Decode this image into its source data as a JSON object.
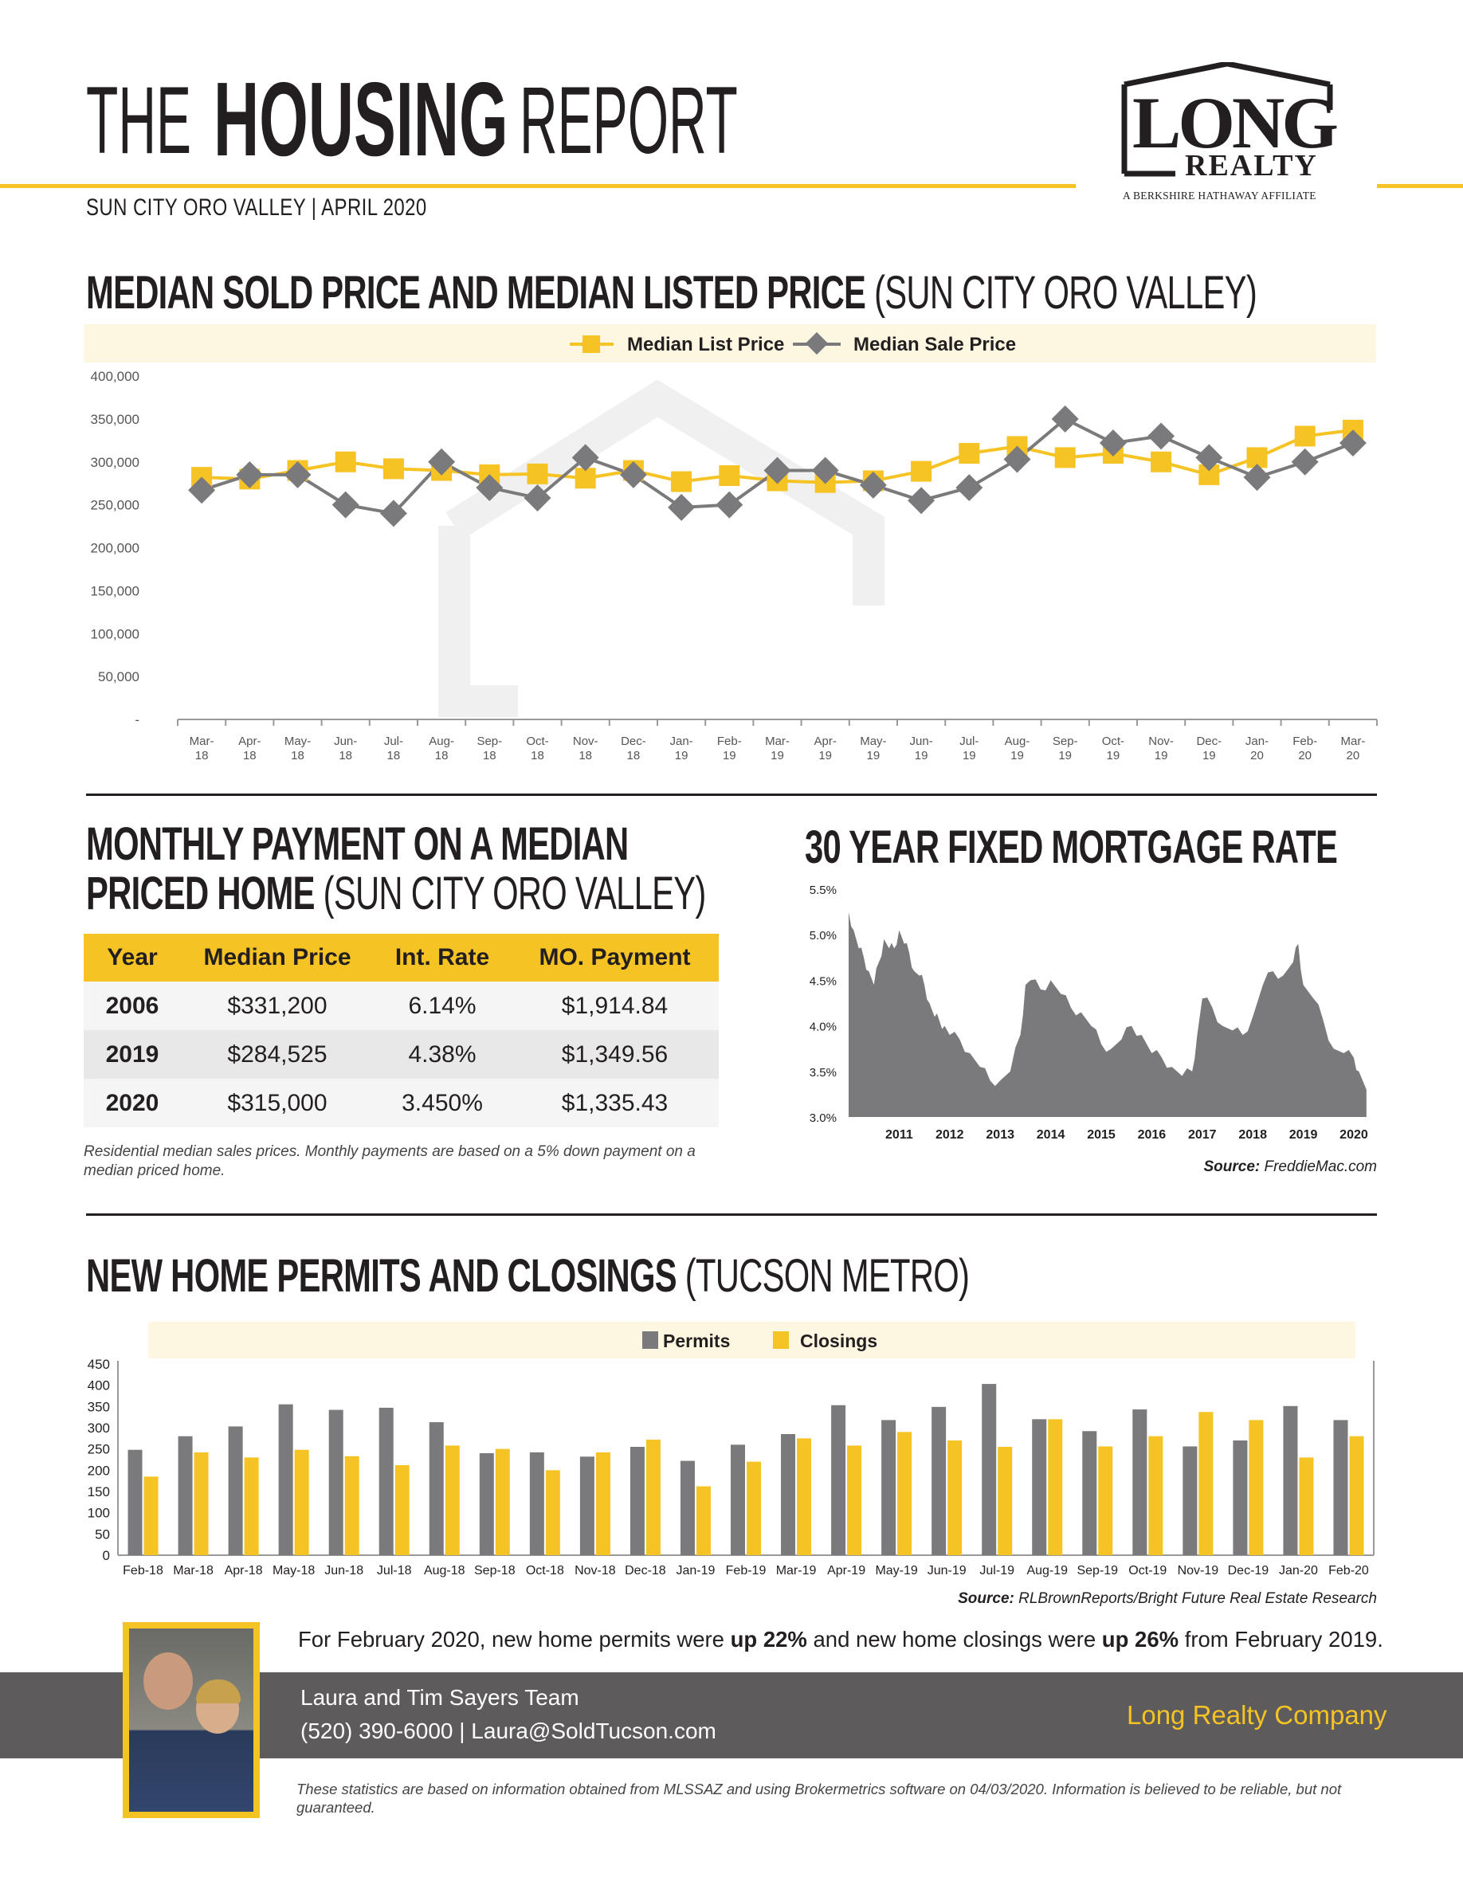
{
  "header": {
    "title_the": "THE",
    "title_housing": "HOUSING",
    "title_report": "REPORT",
    "subtitle": "SUN CITY ORO VALLEY | APRIL 2020",
    "logo_long": "LONG",
    "logo_realty": "REALTY",
    "logo_affiliate": "A BERKSHIRE HATHAWAY AFFILIATE"
  },
  "section1": {
    "title": "MEDIAN SOLD PRICE AND MEDIAN LISTED PRICE",
    "title_sub": "(SUN CITY ORO VALLEY)"
  },
  "section2": {
    "title_line1": "MONTHLY PAYMENT ON A MEDIAN",
    "title_line2": "PRICED HOME",
    "title_sub": "(SUN CITY ORO VALLEY)",
    "table": {
      "headers": [
        "Year",
        "Median Price",
        "Int. Rate",
        "MO. Payment"
      ],
      "rows": [
        [
          "2006",
          "$331,200",
          "6.14%",
          "$1,914.84"
        ],
        [
          "2019",
          "$284,525",
          "4.38%",
          "$1,349.56"
        ],
        [
          "2020",
          "$315,000",
          "3.450%",
          "$1,335.43"
        ]
      ]
    },
    "note": "Residential median sales prices. Monthly payments are based on a 5% down payment on a median priced home."
  },
  "section3": {
    "title": "30 YEAR FIXED MORTGAGE RATE",
    "source_label": "Source:",
    "source_value": "FreddieMac.com"
  },
  "section4": {
    "title": "NEW HOME PERMITS AND CLOSINGS",
    "title_sub": "(TUCSON METRO)",
    "source_label": "Source:",
    "source_value": "RLBrownReports/Bright Future Real Estate Research",
    "summary_pre": "For February 2020, new home permits were ",
    "summary_b1": "up 22%",
    "summary_mid": " and new home closings were ",
    "summary_b2": "up 26%",
    "summary_post": " from February 2019."
  },
  "footer": {
    "team": "Laura and Tim Sayers Team",
    "contact": "(520) 390-6000 | Laura@SoldTucson.com",
    "company": "Long Realty Company",
    "disclaimer": "These statistics are based on information obtained from MLSSAZ and using Brokermetrics software on 04/03/2020. Information is believed to be reliable, but not guaranteed."
  },
  "colors": {
    "yellow": "#f6c324",
    "gray": "#7a797b",
    "dark": "#231f20",
    "band": "#5d5b5b"
  },
  "chart_data": [
    {
      "type": "line",
      "categories": [
        "Mar-18",
        "Apr-18",
        "May-18",
        "Jun-18",
        "Jul-18",
        "Aug-18",
        "Sep-18",
        "Oct-18",
        "Nov-18",
        "Dec-18",
        "Jan-19",
        "Feb-19",
        "Mar-19",
        "Apr-19",
        "May-19",
        "Jun-19",
        "Jul-19",
        "Aug-19",
        "Sep-19",
        "Oct-19",
        "Nov-19",
        "Dec-19",
        "Jan-20",
        "Feb-20",
        "Mar-20"
      ],
      "series": [
        {
          "name": "Median List Price",
          "color": "#f6c324",
          "values": [
            282000,
            280000,
            290000,
            300000,
            292000,
            290000,
            285000,
            286000,
            281000,
            290000,
            277000,
            284000,
            278000,
            276000,
            278000,
            289000,
            310000,
            318000,
            305000,
            310000,
            300000,
            285000,
            305000,
            330000,
            337000
          ]
        },
        {
          "name": "Median Sale Price",
          "color": "#7a797b",
          "values": [
            267000,
            285000,
            285000,
            250000,
            240000,
            300000,
            270000,
            258000,
            305000,
            285000,
            247000,
            250000,
            290000,
            290000,
            273000,
            255000,
            270000,
            303000,
            350000,
            322000,
            330000,
            305000,
            282000,
            300000,
            322000
          ]
        }
      ],
      "ylim": [
        0,
        400000
      ],
      "yticks": [
        "-",
        "50,000",
        "100,000",
        "150,000",
        "200,000",
        "250,000",
        "300,000",
        "350,000",
        "400,000"
      ],
      "legend": "top-center",
      "grid": false
    },
    {
      "type": "area",
      "x_ticks": [
        "2011",
        "2012",
        "2013",
        "2014",
        "2015",
        "2016",
        "2017",
        "2018",
        "2019",
        "2020"
      ],
      "y_ticks": [
        "3.0%",
        "3.5%",
        "4.0%",
        "4.5%",
        "5.0%",
        "5.5%"
      ],
      "ylim": [
        3.0,
        5.5
      ],
      "x": [
        2010.0,
        2010.1,
        2010.2,
        2010.3,
        2010.4,
        2010.5,
        2010.6,
        2010.7,
        2010.8,
        2010.9,
        2011.0,
        2011.1,
        2011.2,
        2011.3,
        2011.4,
        2011.5,
        2011.6,
        2011.7,
        2011.8,
        2011.9,
        2012.0,
        2012.2,
        2012.4,
        2012.6,
        2012.8,
        2013.0,
        2013.2,
        2013.4,
        2013.5,
        2013.6,
        2013.8,
        2014.0,
        2014.2,
        2014.4,
        2014.6,
        2014.8,
        2015.0,
        2015.2,
        2015.4,
        2015.6,
        2015.8,
        2016.0,
        2016.2,
        2016.4,
        2016.6,
        2016.8,
        2016.9,
        2017.0,
        2017.2,
        2017.4,
        2017.6,
        2017.8,
        2018.0,
        2018.2,
        2018.4,
        2018.6,
        2018.8,
        2018.9,
        2019.0,
        2019.2,
        2019.4,
        2019.6,
        2019.8,
        2020.0,
        2020.1,
        2020.25
      ],
      "values": [
        5.25,
        5.05,
        4.85,
        4.75,
        4.6,
        4.45,
        4.7,
        4.95,
        4.85,
        4.85,
        5.05,
        4.9,
        4.8,
        4.6,
        4.55,
        4.45,
        4.25,
        4.1,
        4.05,
        4.0,
        3.9,
        3.85,
        3.7,
        3.55,
        3.4,
        3.4,
        3.5,
        3.9,
        4.45,
        4.5,
        4.4,
        4.5,
        4.35,
        4.2,
        4.15,
        4.0,
        3.8,
        3.75,
        3.85,
        4.0,
        3.9,
        3.7,
        3.65,
        3.55,
        3.45,
        3.5,
        3.9,
        4.3,
        4.2,
        4.0,
        3.95,
        3.9,
        4.1,
        4.45,
        4.6,
        4.55,
        4.7,
        4.9,
        4.45,
        4.3,
        4.05,
        3.75,
        3.7,
        3.65,
        3.5,
        3.3
      ],
      "color": "#7a797b"
    },
    {
      "type": "bar",
      "categories": [
        "Feb-18",
        "Mar-18",
        "Apr-18",
        "May-18",
        "Jun-18",
        "Jul-18",
        "Aug-18",
        "Sep-18",
        "Oct-18",
        "Nov-18",
        "Dec-18",
        "Jan-19",
        "Feb-19",
        "Mar-19",
        "Apr-19",
        "May-19",
        "Jun-19",
        "Jul-19",
        "Aug-19",
        "Sep-19",
        "Oct-19",
        "Nov-19",
        "Dec-19",
        "Jan-20",
        "Feb-20"
      ],
      "series": [
        {
          "name": "Permits",
          "color": "#7a797b",
          "values": [
            248,
            280,
            303,
            355,
            342,
            347,
            313,
            240,
            242,
            232,
            255,
            222,
            260,
            285,
            353,
            318,
            349,
            403,
            320,
            292,
            343,
            256,
            270,
            351,
            318
          ]
        },
        {
          "name": "Closings",
          "color": "#f6c324",
          "values": [
            185,
            242,
            230,
            248,
            233,
            212,
            258,
            250,
            200,
            242,
            272,
            162,
            220,
            275,
            258,
            290,
            270,
            255,
            320,
            256,
            280,
            337,
            318,
            230,
            280
          ]
        }
      ],
      "ylim": [
        0,
        450
      ],
      "yticks": [
        "0",
        "50",
        "100",
        "150",
        "200",
        "250",
        "300",
        "350",
        "400",
        "450"
      ],
      "legend": "top-center"
    }
  ]
}
